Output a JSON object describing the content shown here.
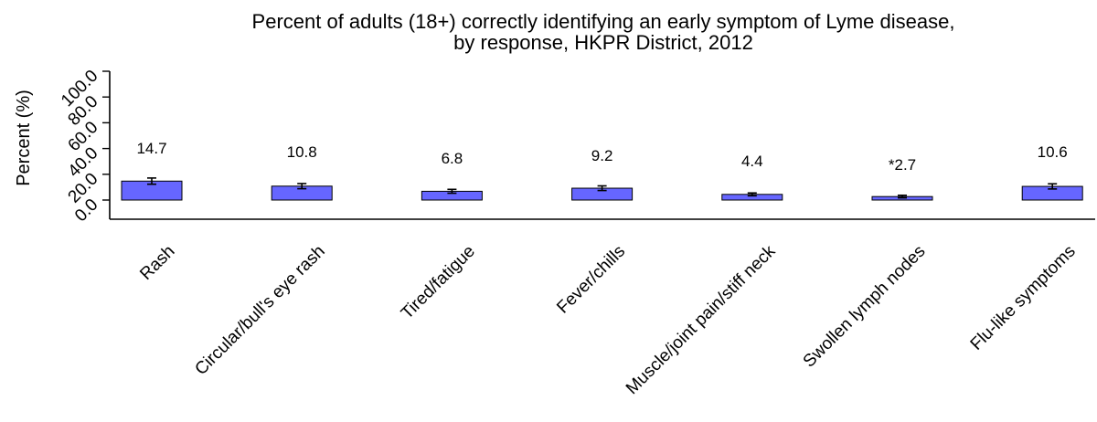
{
  "chart_data": {
    "type": "bar",
    "title": "Percent of adults (18+) correctly identifying an early symptom of Lyme disease, by response, HKPR District, 2012",
    "title_lines": [
      "Percent of adults (18+) correctly identifying an early symptom of Lyme disease,",
      "by response, HKPR District, 2012"
    ],
    "xlabel": "",
    "ylabel": "Percent (%)",
    "ylim": [
      0,
      100
    ],
    "y_ticks": [
      0,
      20,
      40,
      60,
      80,
      100
    ],
    "y_tick_labels": [
      "0.0",
      "20.0",
      "40.0",
      "60.0",
      "80.0",
      "100.0"
    ],
    "grid": false,
    "bar_color": "#6666ff",
    "categories": [
      "Rash",
      "Circular/bull's eye rash",
      "Tired/fatigue",
      "Fever/chills",
      "Muscle/joint pain/stiff neck",
      "Swollen lymph nodes",
      "Flu-like symptoms"
    ],
    "values": [
      14.7,
      10.8,
      6.8,
      9.2,
      4.4,
      2.7,
      10.6
    ],
    "value_labels": [
      "14.7",
      "10.8",
      "6.8",
      "9.2",
      "4.4",
      "*2.7",
      "10.6"
    ],
    "error_low": [
      12.3,
      8.8,
      5.3,
      7.4,
      3.3,
      1.7,
      8.6
    ],
    "error_high": [
      17.1,
      12.8,
      8.3,
      11.0,
      5.5,
      3.7,
      12.6
    ]
  }
}
